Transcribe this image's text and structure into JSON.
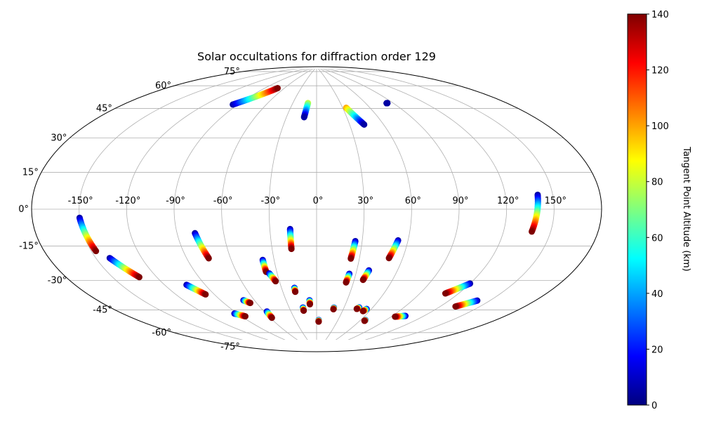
{
  "chart_data": {
    "type": "scatter",
    "projection": "aitoff",
    "title": "Solar occultations for diffraction order 129",
    "lon_range": [
      -180,
      180
    ],
    "lat_range": [
      -90,
      90
    ],
    "lon_ticks": [
      -150,
      -120,
      -90,
      -60,
      -30,
      0,
      30,
      60,
      90,
      120,
      150
    ],
    "lon_tick_labels": [
      "-150°",
      "-120°",
      "-90°",
      "-60°",
      "-30°",
      "0°",
      "30°",
      "60°",
      "90°",
      "120°",
      "150°"
    ],
    "lat_ticks": [
      75,
      60,
      45,
      30,
      15,
      0,
      -15,
      -30,
      -45,
      -60,
      -75
    ],
    "lat_tick_labels": [
      "75°",
      "60°",
      "45°",
      "30°",
      "15°",
      "0°",
      "-15°",
      "-30°",
      "-45°",
      "-60°",
      "-75°"
    ],
    "grid": true,
    "colorbar": {
      "label": "Tangent Point Altitude (km)",
      "range": [
        0,
        140
      ],
      "ticks": [
        0,
        20,
        40,
        60,
        80,
        100,
        120,
        140
      ],
      "tick_labels": [
        "0",
        "20",
        "40",
        "60",
        "80",
        "100",
        "120",
        "140"
      ],
      "colormap": "jet",
      "colormap_colors": [
        "#00007f",
        "#0000ff",
        "#007fff",
        "#00ffff",
        "#7fff7f",
        "#ffff00",
        "#ff7f00",
        "#ff0000",
        "#7f0000"
      ]
    },
    "tracks": [
      {
        "lon": [
          -150.0,
          -147.0
        ],
        "lat": [
          -4.0,
          -20.0
        ],
        "alt": [
          5,
          140
        ]
      },
      {
        "lon": [
          -141.0,
          -132.0
        ],
        "lat": [
          -24.0,
          -35.0
        ],
        "alt": [
          5,
          140
        ]
      },
      {
        "lon": [
          -78.5,
          -75.0
        ],
        "lat": [
          -14.0,
          -29.0
        ],
        "alt": [
          5,
          140
        ]
      },
      {
        "lon": [
          -104.0,
          -97.0
        ],
        "lat": [
          -42.5,
          -49.0
        ],
        "alt": [
          5,
          140
        ]
      },
      {
        "lon": [
          -93.0,
          -86.0
        ],
        "lat": [
          -61.5,
          -64.0
        ],
        "alt": [
          5,
          140
        ]
      },
      {
        "lon": [
          -70.0,
          -66.0
        ],
        "lat": [
          -55.0,
          -57.0
        ],
        "alt": [
          5,
          140
        ]
      },
      {
        "lon": [
          -38.0,
          -38.0
        ],
        "lat": [
          -31.5,
          -39.0
        ],
        "alt": [
          5,
          140
        ]
      },
      {
        "lon": [
          -36.0,
          -33.0
        ],
        "lat": [
          -40.0,
          -45.0
        ],
        "alt": [
          5,
          140
        ]
      },
      {
        "lon": [
          -57.0,
          -58.0
        ],
        "lat": [
          -63.0,
          -67.0
        ],
        "alt": [
          5,
          140
        ]
      },
      {
        "lon": [
          -17.0,
          -17.0
        ],
        "lat": [
          -12.5,
          -25.0
        ],
        "alt": [
          5,
          140
        ]
      },
      {
        "lon": [
          -19.0,
          -19.0
        ],
        "lat": [
          -49.5,
          -52.0
        ],
        "alt": [
          5,
          140
        ]
      },
      {
        "lon": [
          -15.0,
          -15.0
        ],
        "lat": [
          -62.0,
          -64.0
        ],
        "alt": [
          5,
          140
        ]
      },
      {
        "lon": [
          -7.0,
          -7.0
        ],
        "lat": [
          -57.5,
          -60.0
        ],
        "alt": [
          5,
          140
        ]
      },
      {
        "lon": [
          3.0,
          3.0
        ],
        "lat": [
          -70.0,
          -71.0
        ],
        "alt": [
          5,
          140
        ]
      },
      {
        "lon": [
          19.0,
          19.0
        ],
        "lat": [
          -62.0,
          -63.0
        ],
        "alt": [
          5,
          140
        ]
      },
      {
        "lon": [
          25.5,
          24.0
        ],
        "lat": [
          -20.0,
          -31.0
        ],
        "alt": [
          5,
          140
        ]
      },
      {
        "lon": [
          25.0,
          24.0
        ],
        "lat": [
          -40.5,
          -46.0
        ],
        "alt": [
          5,
          140
        ]
      },
      {
        "lon": [
          39.0,
          37.0
        ],
        "lat": [
          -38.0,
          -44.0
        ],
        "alt": [
          5,
          140
        ]
      },
      {
        "lon": [
          53.5,
          50.5
        ],
        "lat": [
          -19.0,
          -30.0
        ],
        "alt": [
          5,
          140
        ]
      },
      {
        "lon": [
          46.0,
          44.5
        ],
        "lat": [
          -61.0,
          -62.0
        ],
        "alt": [
          5,
          140
        ]
      },
      {
        "lon": [
          55.0,
          53.0
        ],
        "lat": [
          -61.5,
          -63.0
        ],
        "alt": [
          5,
          140
        ]
      },
      {
        "lon": [
          66.0,
          66.0
        ],
        "lat": [
          -68.0,
          -68.5
        ],
        "alt": [
          5,
          140
        ]
      },
      {
        "lon": [
          103.0,
          94.0
        ],
        "lat": [
          -62.0,
          -63.5
        ],
        "alt": [
          5,
          140
        ]
      },
      {
        "lon": [
          120.0,
          110.0
        ],
        "lat": [
          -40.0,
          -47.0
        ],
        "alt": [
          5,
          140
        ]
      },
      {
        "lon": [
          141.0,
          132.0
        ],
        "lat": [
          -47.0,
          -52.0
        ],
        "alt": [
          5,
          140
        ]
      },
      {
        "lon": [
          140.5,
          138.0
        ],
        "lat": [
          7.0,
          -11.0
        ],
        "alt": [
          5,
          140
        ]
      },
      {
        "lon": [
          34.0,
          43.0
        ],
        "lat": [
          63.5,
          52.5
        ],
        "alt": [
          100,
          5
        ]
      },
      {
        "lon": [
          -11.0,
          -12.5
        ],
        "lat": [
          67.0,
          58.0
        ],
        "alt": [
          80,
          5
        ]
      },
      {
        "lon": [
          -95.0,
          -71.0
        ],
        "lat": [
          61.5,
          74.5
        ],
        "alt": [
          5,
          140
        ]
      },
      {
        "lon": [
          83.0,
          84.0
        ],
        "lat": [
          63.5,
          63.5
        ],
        "alt": [
          5,
          5
        ]
      }
    ]
  }
}
